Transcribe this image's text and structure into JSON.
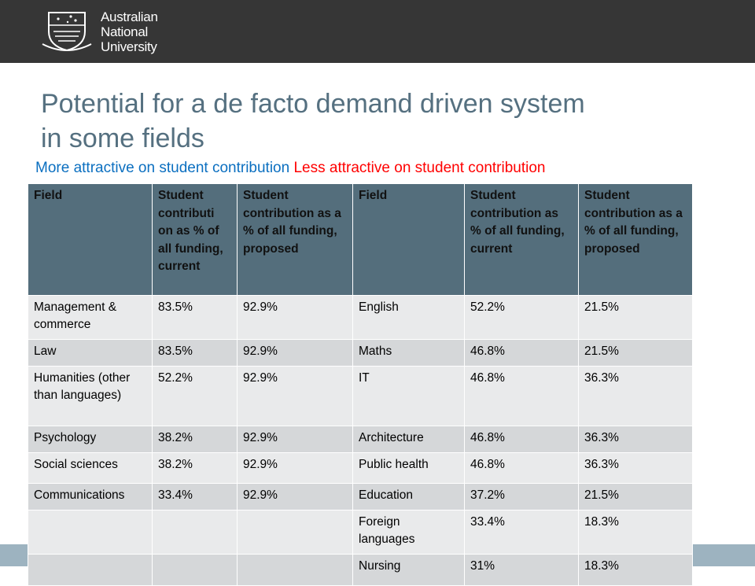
{
  "header": {
    "logo_lines": [
      "Australian",
      "National",
      "University"
    ]
  },
  "title_lines": [
    "Potential for a de facto demand driven system",
    "in some fields"
  ],
  "legend": {
    "more": "More attractive on student contribution",
    "less": "Less attractive on student contribution"
  },
  "table": {
    "columns": [
      "Field",
      "Student contributi on as % of all funding, current",
      "Student contribution as a % of all funding, proposed",
      "Field",
      "Student contribution as % of all funding, current",
      "Student contribution as a % of all funding, proposed"
    ],
    "rows": [
      [
        "Management & commerce",
        "83.5%",
        "92.9%",
        "English",
        "52.2%",
        "21.5%"
      ],
      [
        "Law",
        "83.5%",
        "92.9%",
        "Maths",
        "46.8%",
        "21.5%"
      ],
      [
        "Humanities (other than languages)",
        "52.2%",
        "92.9%",
        "IT",
        "46.8%",
        "36.3%"
      ],
      [
        "Psychology",
        "38.2%",
        "92.9%",
        "Architecture",
        "46.8%",
        "36.3%"
      ],
      [
        "Social sciences",
        "38.2%",
        "92.9%",
        "Public health",
        "46.8%",
        "36.3%"
      ],
      [
        "Communications",
        "33.4%",
        "92.9%",
        "Education",
        "37.2%",
        "21.5%"
      ],
      [
        null,
        null,
        null,
        "Foreign languages",
        "33.4%",
        "18.3%"
      ],
      [
        null,
        null,
        null,
        "Nursing",
        "31%",
        "18.3%"
      ]
    ]
  }
}
